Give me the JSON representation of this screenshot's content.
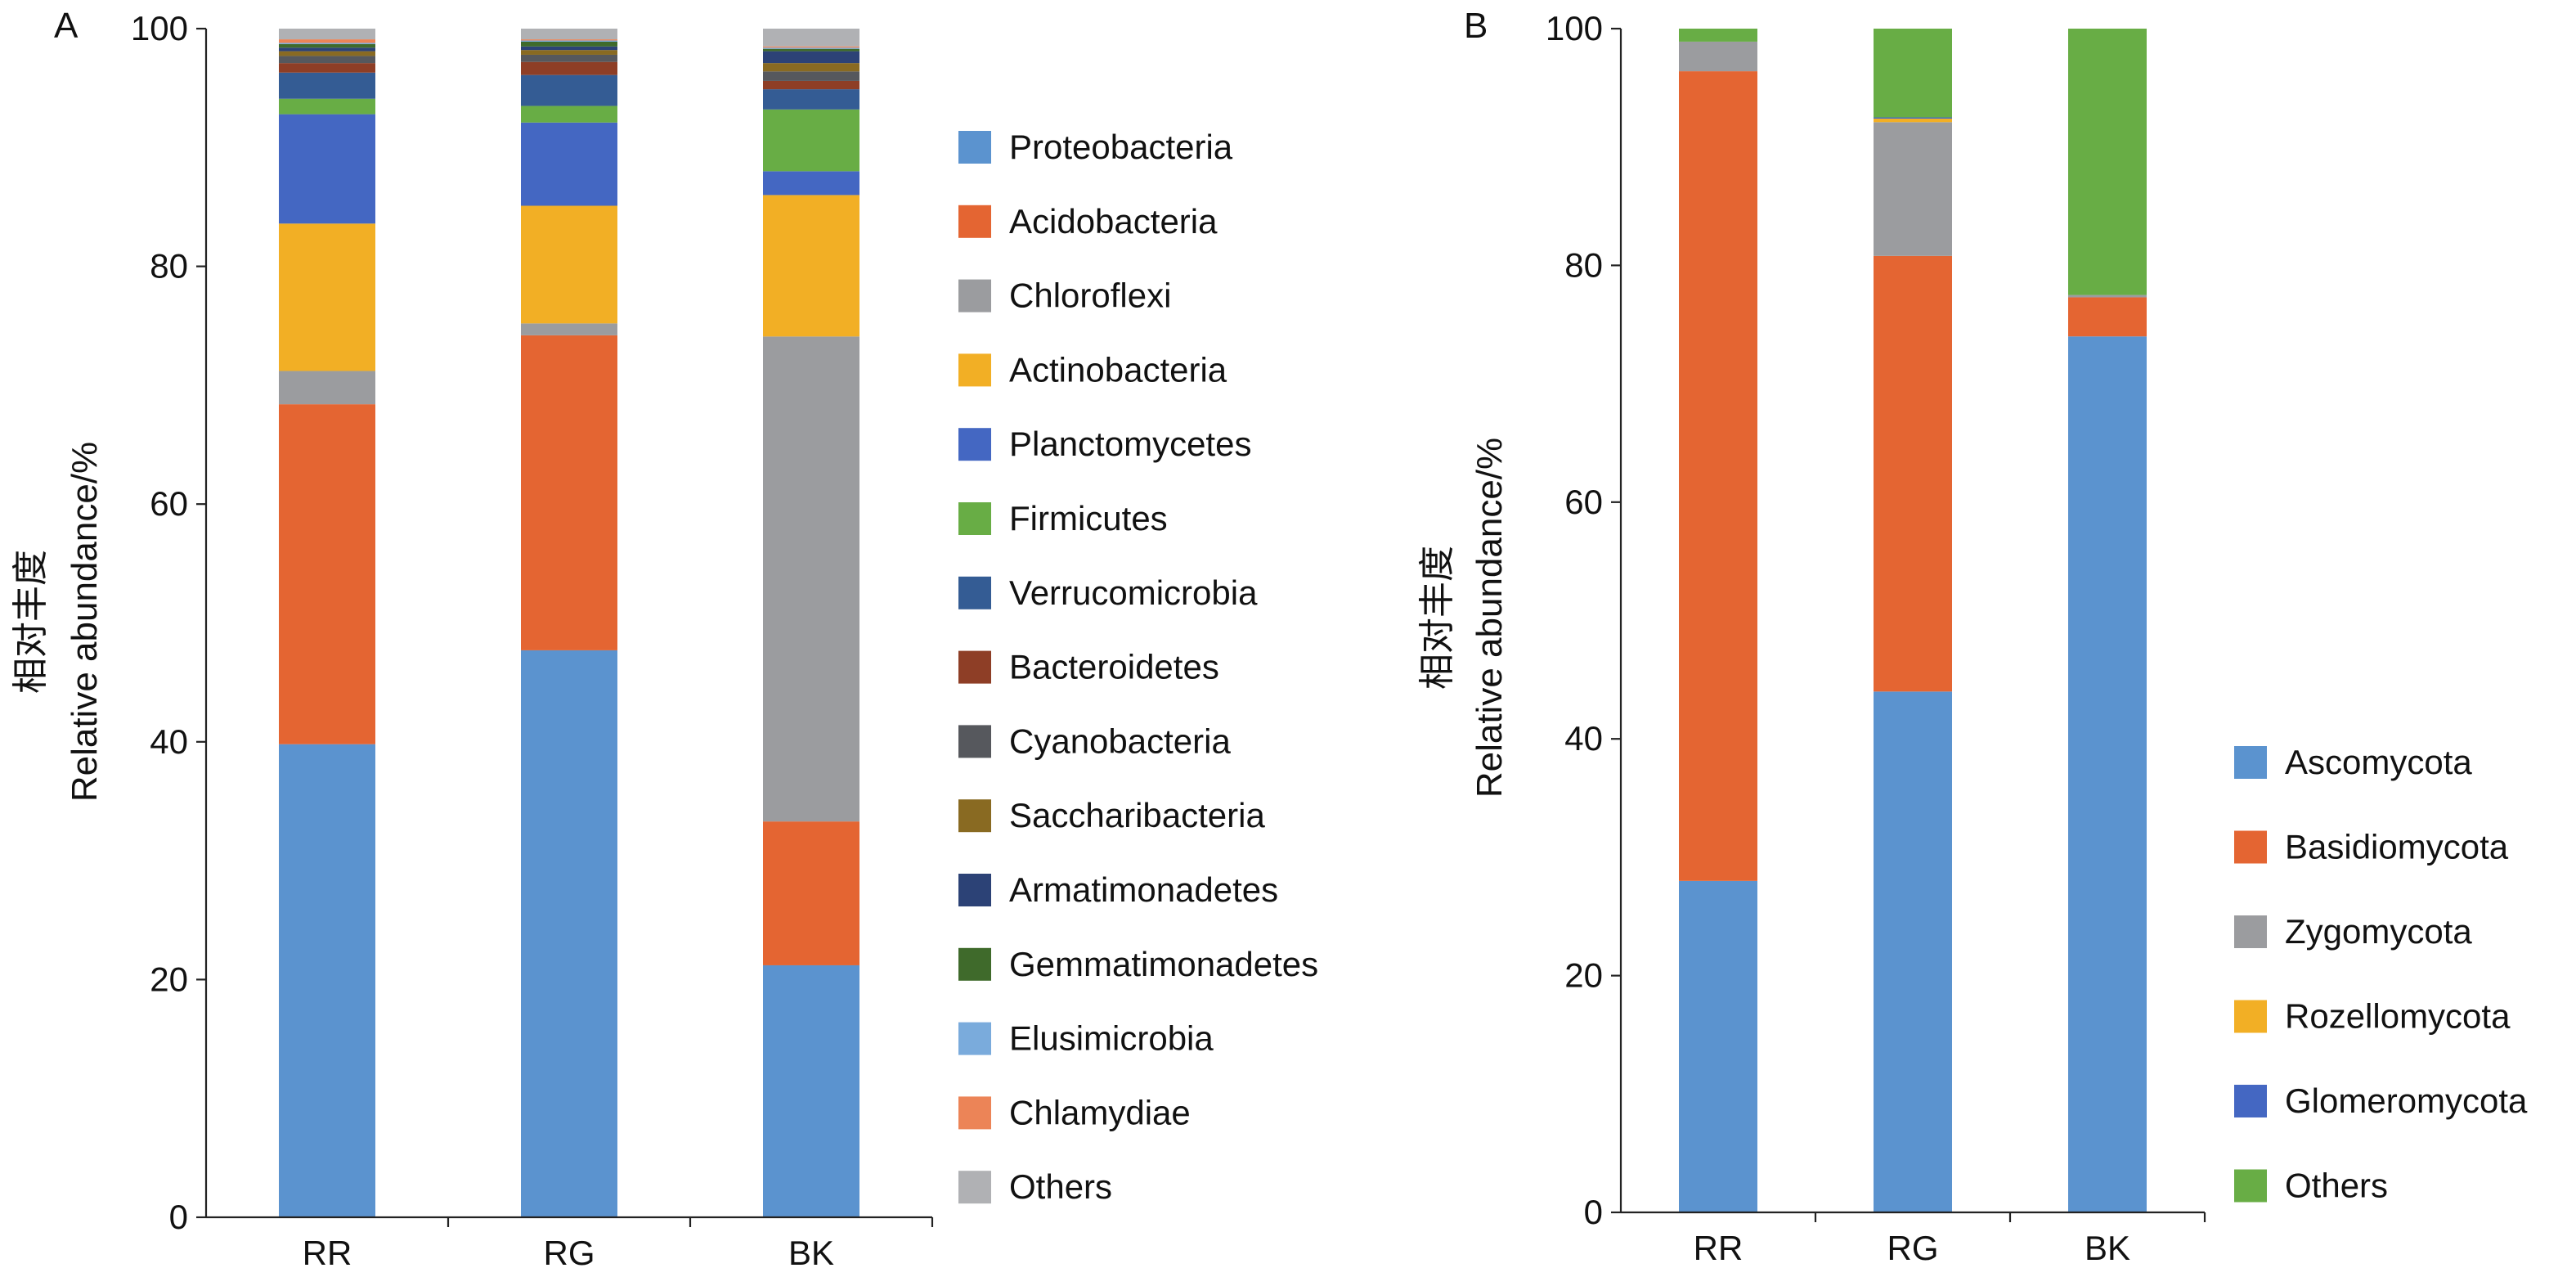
{
  "colors": {
    "Proteobacteria": "#5b93cf",
    "Acidobacteria": "#e46532",
    "Chloroflexi": "#9b9c9f",
    "Actinobacteria": "#f2af25",
    "Planctomycetes": "#4467c2",
    "Firmicutes": "#68ad45",
    "Verrucomicrobia": "#345c94",
    "Bacteroidetes": "#8e3e26",
    "Cyanobacteria": "#56585d",
    "Saccharibacteria": "#896a22",
    "Armatimonadetes": "#2c4276",
    "Gemmatimonadetes": "#3f6a2b",
    "Elusimicrobia": "#7aabdc",
    "Chlamydiae": "#ec8457",
    "Others": "#b0b1b4",
    "Ascomycota": "#5b93cf",
    "Basidiomycota": "#e46532",
    "Zygomycota": "#9b9c9f",
    "Rozellomycota": "#f2af25",
    "Glomeromycota": "#4467c2",
    "OthersFungi": "#68ad45"
  },
  "chart_data": [
    {
      "type": "bar",
      "stacked": true,
      "panel_label": "A",
      "ylabel_cn": "相对丰度",
      "ylabel": "Relative abundance/%",
      "ylim": [
        0,
        100
      ],
      "yticks": [
        0,
        20,
        40,
        60,
        80,
        100
      ],
      "categories": [
        "RR",
        "RG",
        "BK"
      ],
      "legend_position": "right",
      "series": [
        {
          "name": "Proteobacteria",
          "color_key": "Proteobacteria",
          "values": [
            39.8,
            47.7,
            21.2
          ]
        },
        {
          "name": "Acidobacteria",
          "color_key": "Acidobacteria",
          "values": [
            28.6,
            26.5,
            12.1
          ]
        },
        {
          "name": "Chloroflexi",
          "color_key": "Chloroflexi",
          "values": [
            2.8,
            1.0,
            40.8
          ]
        },
        {
          "name": "Actinobacteria",
          "color_key": "Actinobacteria",
          "values": [
            12.4,
            9.9,
            11.9
          ]
        },
        {
          "name": "Planctomycetes",
          "color_key": "Planctomycetes",
          "values": [
            9.2,
            7.0,
            2.0
          ]
        },
        {
          "name": "Firmicutes",
          "color_key": "Firmicutes",
          "values": [
            1.3,
            1.4,
            5.2
          ]
        },
        {
          "name": "Verrucomicrobia",
          "color_key": "Verrucomicrobia",
          "values": [
            2.2,
            2.6,
            1.7
          ]
        },
        {
          "name": "Bacteroidetes",
          "color_key": "Bacteroidetes",
          "values": [
            0.8,
            1.1,
            0.7
          ]
        },
        {
          "name": "Cyanobacteria",
          "color_key": "Cyanobacteria",
          "values": [
            0.6,
            0.6,
            0.8
          ]
        },
        {
          "name": "Saccharibacteria",
          "color_key": "Saccharibacteria",
          "values": [
            0.4,
            0.4,
            0.7
          ]
        },
        {
          "name": "Armatimonadetes",
          "color_key": "Armatimonadetes",
          "values": [
            0.3,
            0.3,
            1.0
          ]
        },
        {
          "name": "Gemmatimonadetes",
          "color_key": "Gemmatimonadetes",
          "values": [
            0.3,
            0.4,
            0.2
          ]
        },
        {
          "name": "Elusimicrobia",
          "color_key": "Elusimicrobia",
          "values": [
            0.1,
            0.1,
            0.1
          ]
        },
        {
          "name": "Chlamydiae",
          "color_key": "Chlamydiae",
          "values": [
            0.3,
            0.1,
            0.1
          ]
        },
        {
          "name": "Others",
          "color_key": "Others",
          "values": [
            0.9,
            0.9,
            1.5
          ]
        }
      ]
    },
    {
      "type": "bar",
      "stacked": true,
      "panel_label": "B",
      "ylabel_cn": "相对丰度",
      "ylabel": "Relative abundance/%",
      "ylim": [
        0,
        100
      ],
      "yticks": [
        0,
        20,
        40,
        60,
        80,
        100
      ],
      "categories": [
        "RR",
        "RG",
        "BK"
      ],
      "legend_position": "right-bottom",
      "series": [
        {
          "name": "Ascomycota",
          "color_key": "Ascomycota",
          "values": [
            28.0,
            44.0,
            74.0
          ]
        },
        {
          "name": "Basidiomycota",
          "color_key": "Basidiomycota",
          "values": [
            68.4,
            36.8,
            3.3
          ]
        },
        {
          "name": "Zygomycota",
          "color_key": "Zygomycota",
          "values": [
            2.5,
            11.3,
            0.2
          ]
        },
        {
          "name": "Rozellomycota",
          "color_key": "Rozellomycota",
          "values": [
            0.0,
            0.3,
            0.0
          ]
        },
        {
          "name": "Glomeromycota",
          "color_key": "Glomeromycota",
          "values": [
            0.0,
            0.1,
            0.0
          ]
        },
        {
          "name": "Others",
          "color_key": "OthersFungi",
          "values": [
            1.1,
            7.5,
            22.5
          ]
        }
      ]
    }
  ]
}
